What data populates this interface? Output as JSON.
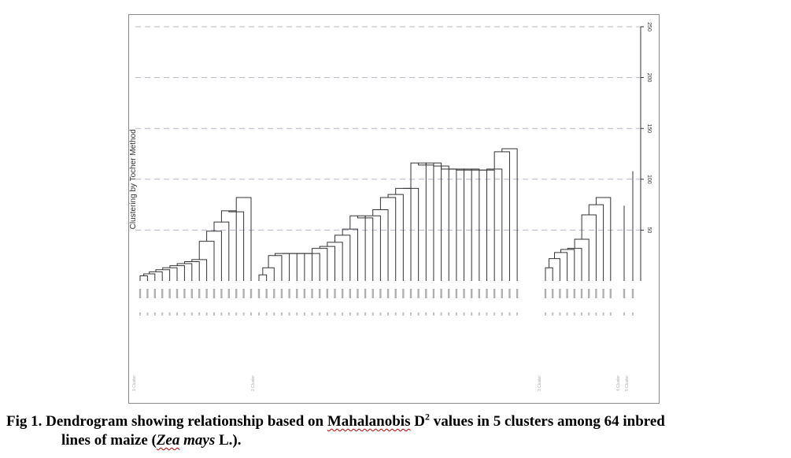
{
  "caption": {
    "label": "Fig 1.",
    "text_a": "Dendrogram showing relationship based on",
    "mahalanobis": "Mahalanobis",
    "d": "D",
    "d_sup": "2",
    "text_b": "values in 5 clusters among 64 inbred",
    "text_c": "lines of maize (",
    "zea": "Zea",
    "mays": "mays",
    "text_d": "L.)."
  },
  "chart_data": {
    "type": "dendrogram",
    "ylabel": "Clustering by Tocher Method",
    "ylim": [
      0,
      250
    ],
    "yticks": [
      50,
      100,
      150,
      200,
      250
    ],
    "grid": "horizontal dashed",
    "axis_side": "right",
    "colors": {
      "line": "#333333",
      "grid": "#b8b8c8",
      "frame": "#8a8a8a"
    },
    "clusters": [
      {
        "label": "1 Cluster",
        "heights": [
          5,
          7,
          9,
          11,
          13,
          15,
          17,
          19,
          21,
          39,
          49,
          58,
          69,
          68,
          82
        ]
      },
      {
        "label": "2 Cluster",
        "heights": [
          6,
          13,
          25,
          27,
          27,
          27,
          27,
          27,
          32,
          34,
          38,
          45,
          51,
          64,
          62,
          64,
          70,
          82,
          85,
          91,
          91,
          116,
          114,
          116,
          113,
          110,
          110,
          109,
          110,
          109,
          109,
          110,
          127,
          130
        ]
      },
      {
        "label": "3 Cluster",
        "heights": [
          13,
          22,
          28,
          31,
          32,
          41,
          65,
          75,
          82
        ]
      },
      {
        "label": "4 Cluster",
        "heights": [
          74
        ]
      },
      {
        "label": "5 Cluster",
        "heights": [
          108
        ]
      }
    ]
  }
}
